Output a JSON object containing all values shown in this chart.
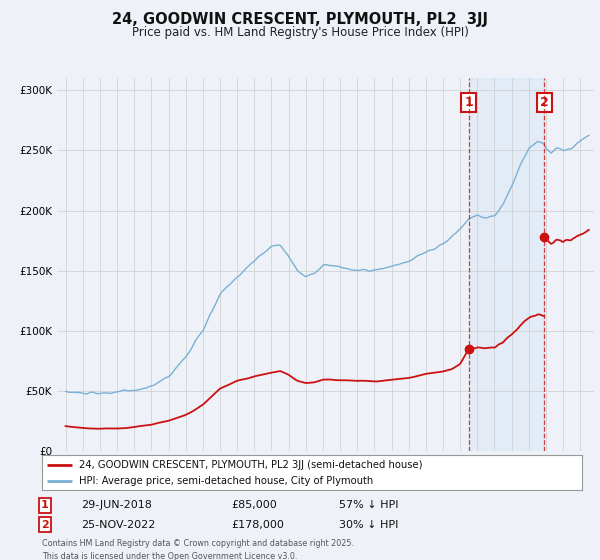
{
  "title": "24, GOODWIN CRESCENT, PLYMOUTH, PL2  3JJ",
  "subtitle": "Price paid vs. HM Land Registry's House Price Index (HPI)",
  "red_label": "24, GOODWIN CRESCENT, PLYMOUTH, PL2 3JJ (semi-detached house)",
  "blue_label": "HPI: Average price, semi-detached house, City of Plymouth",
  "marker1_date": "29-JUN-2018",
  "marker1_price": 85000,
  "marker1_pct": "57% ↓ HPI",
  "marker2_date": "25-NOV-2022",
  "marker2_price": 178000,
  "marker2_pct": "30% ↓ HPI",
  "footnote": "Contains HM Land Registry data © Crown copyright and database right 2025.\nThis data is licensed under the Open Government Licence v3.0.",
  "background_color": "#eef2f8",
  "plot_background": "#eef2f8",
  "blue_color": "#7ab0d4",
  "red_color": "#cc1111",
  "marker1_x": 2018.5,
  "marker2_x": 2022.9,
  "xlim": [
    1994.5,
    2025.8
  ],
  "ylim": [
    0,
    310000
  ],
  "yticks": [
    0,
    50000,
    100000,
    150000,
    200000,
    250000,
    300000
  ],
  "xtick_start": 1995,
  "xtick_end": 2025
}
